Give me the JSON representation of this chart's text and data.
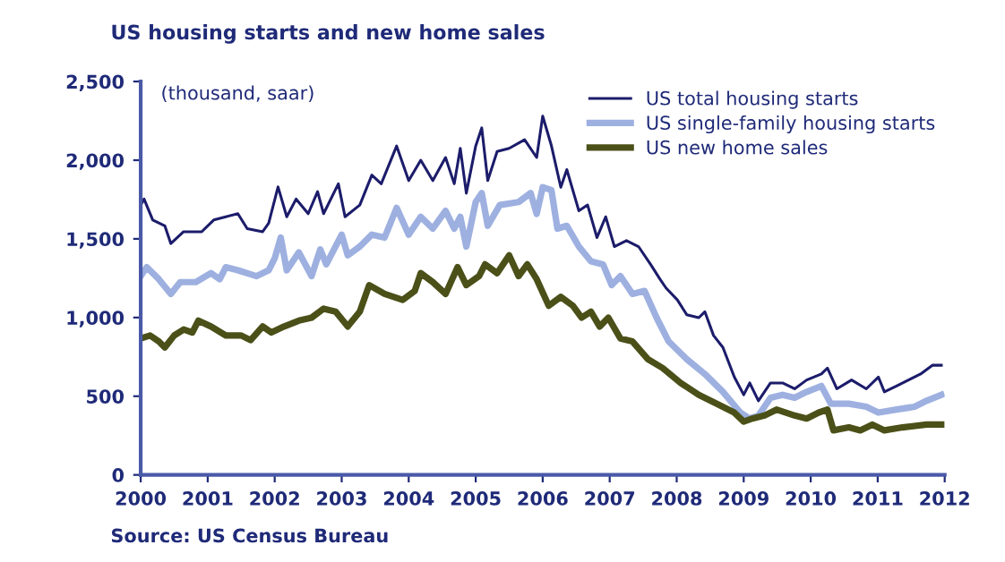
{
  "chart_data": {
    "type": "line",
    "title": "US housing starts and new home sales",
    "annotations": [
      "(thousand, saar)",
      "Source: US Census Bureau"
    ],
    "xlim": [
      2000,
      2012
    ],
    "xticks": [
      2000,
      2001,
      2002,
      2003,
      2004,
      2005,
      2006,
      2007,
      2008,
      2009,
      2010,
      2011,
      2012
    ],
    "ylim": [
      0,
      2500
    ],
    "yticks": [
      0,
      500,
      {
        "value": 1000,
        "label": "1,000"
      },
      {
        "value": 1500,
        "label": "1,500"
      },
      {
        "value": 2000,
        "label": "2,000"
      },
      {
        "value": 2500,
        "label": "2,500"
      }
    ],
    "grid": false,
    "legend": "top right",
    "marker": "none",
    "line_style": "solid",
    "series": [
      {
        "name": "US total housing starts",
        "color": "#1c1c6b",
        "x": [
          2000.0,
          2000.05,
          2000.18,
          2000.36,
          2000.45,
          2000.64,
          2000.91,
          2001.09,
          2001.27,
          2001.45,
          2001.59,
          2001.82,
          2001.91,
          2002.05,
          2002.18,
          2002.32,
          2002.5,
          2002.64,
          2002.73,
          2002.95,
          2003.05,
          2003.27,
          2003.45,
          2003.59,
          2003.82,
          2004.0,
          2004.18,
          2004.36,
          2004.55,
          2004.68,
          2004.77,
          2004.86,
          2005.0,
          2005.09,
          2005.18,
          2005.32,
          2005.5,
          2005.73,
          2005.91,
          2006.0,
          2006.13,
          2006.27,
          2006.36,
          2006.54,
          2006.67,
          2006.81,
          2006.94,
          2007.07,
          2007.25,
          2007.43,
          2007.61,
          2007.75,
          2007.84,
          2008.01,
          2008.15,
          2008.33,
          2008.42,
          2008.55,
          2008.69,
          2008.86,
          2009.0,
          2009.09,
          2009.22,
          2009.4,
          2009.58,
          2009.76,
          2009.94,
          2010.16,
          2010.25,
          2010.39,
          2010.61,
          2010.83,
          2011.01,
          2011.1,
          2011.28,
          2011.46,
          2011.64,
          2011.82,
          2011.95
        ],
        "values": [
          1715,
          1753,
          1620,
          1583,
          1470,
          1545,
          1545,
          1620,
          1640,
          1660,
          1565,
          1545,
          1600,
          1830,
          1640,
          1753,
          1660,
          1800,
          1660,
          1850,
          1640,
          1715,
          1905,
          1850,
          2090,
          1870,
          2000,
          1870,
          2017,
          1850,
          2075,
          1790,
          2090,
          2205,
          1870,
          2055,
          2075,
          2130,
          2017,
          2280,
          2092,
          1828,
          1940,
          1678,
          1715,
          1508,
          1640,
          1451,
          1489,
          1451,
          1338,
          1244,
          1188,
          1112,
          1018,
          999,
          1037,
          886,
          810,
          622,
          509,
          584,
          471,
          584,
          584,
          547,
          603,
          641,
          679,
          547,
          603,
          547,
          622,
          528,
          565,
          603,
          641,
          697,
          697
        ]
      },
      {
        "name": "US single-family housing starts",
        "color": "#9db0e0",
        "x": [
          2000.0,
          2000.09,
          2000.27,
          2000.45,
          2000.59,
          2000.82,
          2001.05,
          2001.18,
          2001.27,
          2001.45,
          2001.73,
          2001.91,
          2002.0,
          2002.09,
          2002.18,
          2002.36,
          2002.55,
          2002.68,
          2002.77,
          2003.0,
          2003.09,
          2003.27,
          2003.45,
          2003.64,
          2003.82,
          2004.0,
          2004.18,
          2004.36,
          2004.55,
          2004.68,
          2004.77,
          2004.86,
          2005.0,
          2005.09,
          2005.18,
          2005.36,
          2005.64,
          2005.82,
          2005.91,
          2006.0,
          2006.13,
          2006.22,
          2006.36,
          2006.54,
          2006.72,
          2006.9,
          2007.03,
          2007.16,
          2007.34,
          2007.52,
          2007.7,
          2007.88,
          2008.15,
          2008.42,
          2008.69,
          2008.95,
          2009.09,
          2009.22,
          2009.4,
          2009.58,
          2009.76,
          2009.94,
          2010.16,
          2010.3,
          2010.57,
          2010.83,
          2011.01,
          2011.28,
          2011.55,
          2011.73,
          2011.95
        ],
        "values": [
          1263,
          1320,
          1244,
          1150,
          1225,
          1225,
          1282,
          1244,
          1320,
          1300,
          1263,
          1300,
          1376,
          1508,
          1300,
          1414,
          1263,
          1433,
          1338,
          1527,
          1395,
          1451,
          1527,
          1508,
          1697,
          1527,
          1640,
          1565,
          1678,
          1565,
          1640,
          1451,
          1734,
          1791,
          1583,
          1715,
          1734,
          1791,
          1659,
          1828,
          1810,
          1565,
          1583,
          1451,
          1357,
          1338,
          1206,
          1263,
          1150,
          1169,
          999,
          848,
          735,
          641,
          528,
          396,
          358,
          377,
          490,
          509,
          490,
          528,
          565,
          452,
          452,
          433,
          396,
          415,
          433,
          471,
          509
        ]
      },
      {
        "name": "US new home sales",
        "color": "#4b5019",
        "x": [
          2000.0,
          2000.14,
          2000.27,
          2000.36,
          2000.5,
          2000.64,
          2000.77,
          2000.86,
          2001.05,
          2001.27,
          2001.5,
          2001.64,
          2001.82,
          2001.95,
          2002.14,
          2002.36,
          2002.55,
          2002.73,
          2002.91,
          2003.09,
          2003.27,
          2003.41,
          2003.64,
          2003.91,
          2004.09,
          2004.18,
          2004.36,
          2004.55,
          2004.73,
          2004.86,
          2005.05,
          2005.14,
          2005.32,
          2005.5,
          2005.64,
          2005.77,
          2005.91,
          2006.09,
          2006.27,
          2006.45,
          2006.58,
          2006.72,
          2006.85,
          2006.98,
          2007.16,
          2007.34,
          2007.57,
          2007.79,
          2008.06,
          2008.33,
          2008.6,
          2008.86,
          2009.0,
          2009.13,
          2009.31,
          2009.49,
          2009.76,
          2009.94,
          2010.12,
          2010.25,
          2010.34,
          2010.57,
          2010.74,
          2010.92,
          2011.1,
          2011.37,
          2011.73,
          2011.95
        ],
        "values": [
          867,
          886,
          848,
          810,
          886,
          924,
          905,
          980,
          943,
          886,
          886,
          856,
          943,
          905,
          943,
          980,
          999,
          1056,
          1037,
          943,
          1037,
          1206,
          1150,
          1112,
          1169,
          1282,
          1225,
          1150,
          1320,
          1206,
          1263,
          1338,
          1282,
          1395,
          1263,
          1338,
          1244,
          1075,
          1131,
          1075,
          999,
          1037,
          943,
          999,
          867,
          848,
          735,
          679,
          584,
          509,
          452,
          396,
          339,
          358,
          377,
          415,
          377,
          358,
          396,
          415,
          283,
          302,
          283,
          320,
          283,
          302,
          320,
          320
        ]
      }
    ]
  }
}
